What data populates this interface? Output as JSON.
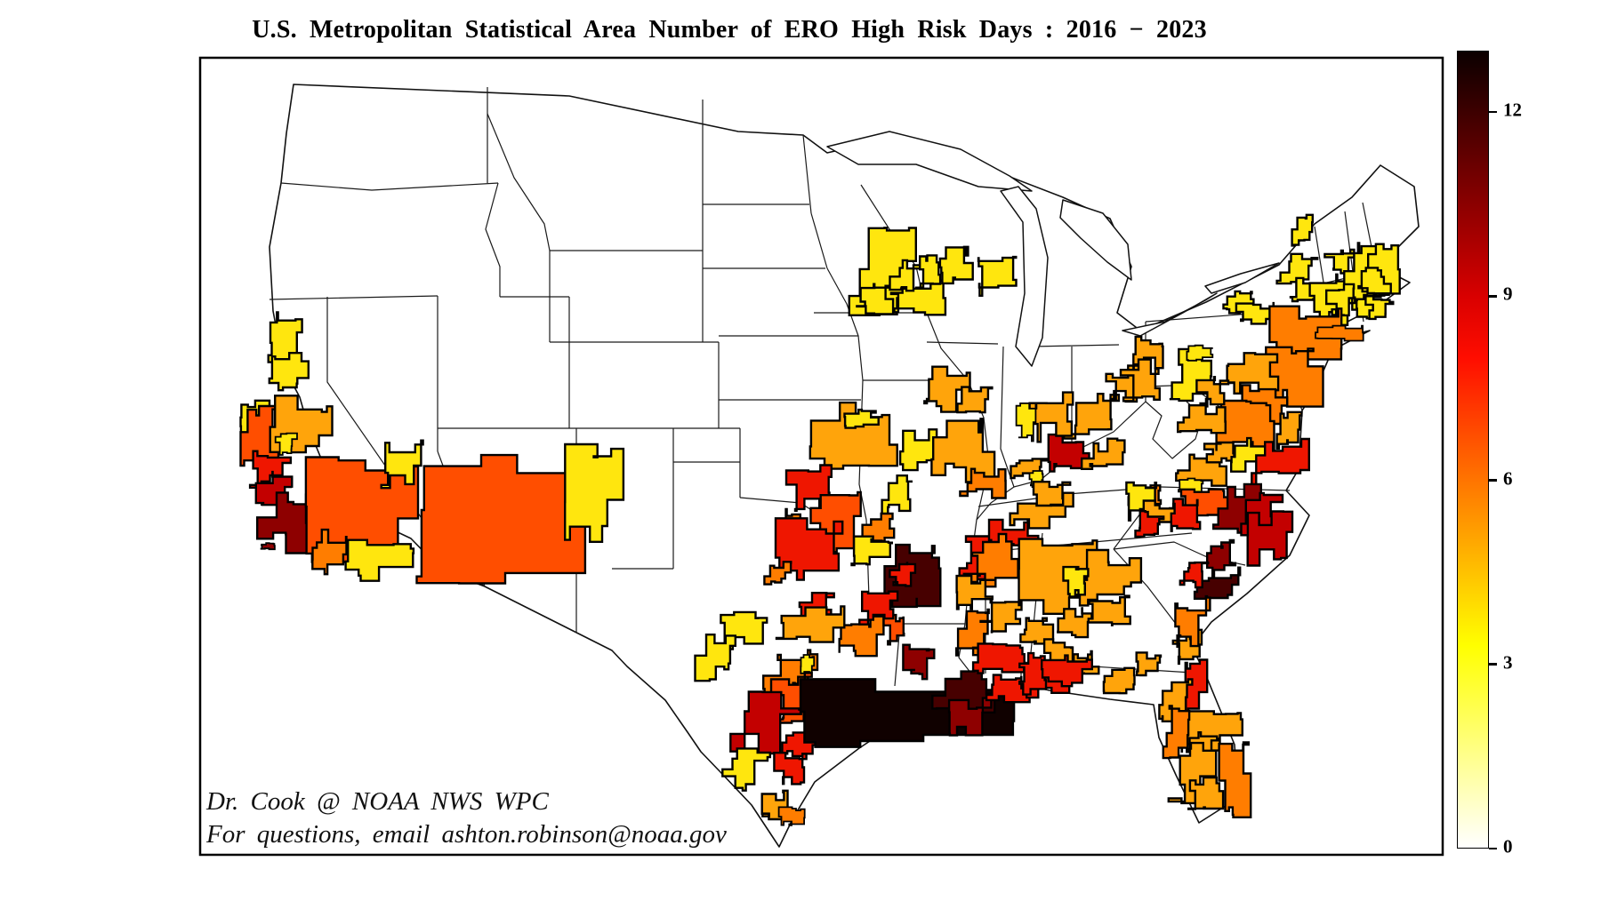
{
  "title": "U.S. Metropolitan Statistical Area Number of ERO High Risk Days : 2016 − 2023",
  "attribution": {
    "line1": "Dr. Cook @ NOAA NWS WPC",
    "line2": "For questions, email ashton.robinson@noaa.gov"
  },
  "colorbar": {
    "min": 0,
    "max": 13,
    "ticks": [
      12,
      9,
      6,
      3,
      0
    ],
    "orientation": "vertical",
    "position": "right"
  },
  "chart_data": {
    "type": "choropleth",
    "title": "U.S. Metropolitan Statistical Area Number of ERO High Risk Days : 2016 − 2023",
    "geography": "conterminous United States, Metropolitan Statistical Areas over state borders",
    "colormap": "hot_r (white → yellow → orange → red → dark red → black)",
    "value_range": [
      0,
      13
    ],
    "colorbar_ticks": [
      0,
      3,
      6,
      9,
      12
    ],
    "legend_position": "right",
    "uncolored_value": "0 (white MSAs / non-MSA land)",
    "palette": {
      "Y": {
        "hex": "#FFE60E",
        "approx_value": 3
      },
      "O": {
        "hex": "#FFA40B",
        "approx_value": 5
      },
      "DO": {
        "hex": "#FF7D00",
        "approx_value": 6
      },
      "RO": {
        "hex": "#FF4E00",
        "approx_value": 7
      },
      "R": {
        "hex": "#EF1600",
        "approx_value": 8.5
      },
      "DR": {
        "hex": "#C30000",
        "approx_value": 9.5
      },
      "M": {
        "hex": "#8E0000",
        "approx_value": 10.5
      },
      "DM": {
        "hex": "#470000",
        "approx_value": 12
      },
      "K": {
        "hex": "#100100",
        "approx_value": 13
      }
    },
    "regions_format": [
      "id",
      "color_key",
      "x",
      "y",
      "w",
      "h"
    ],
    "regions": [
      [
        "redding",
        "Y",
        296,
        362,
        40,
        46
      ],
      [
        "chico",
        "Y",
        306,
        404,
        34,
        30
      ],
      [
        "clearlake",
        "Y",
        276,
        452,
        22,
        32
      ],
      [
        "sf-bay-area",
        "RO",
        272,
        468,
        44,
        60
      ],
      [
        "sacramento",
        "O",
        312,
        458,
        56,
        50
      ],
      [
        "yuba-city",
        "Y",
        314,
        492,
        16,
        18
      ],
      [
        "central-coast",
        "R",
        282,
        512,
        38,
        30
      ],
      [
        "san-luis-obispo",
        "DR",
        292,
        540,
        36,
        36
      ],
      [
        "los-angeles-ventura",
        "M",
        300,
        564,
        54,
        48
      ],
      [
        "channel-islands",
        "M",
        294,
        612,
        14,
        6
      ],
      [
        "riverside-san-bernardino",
        "RO",
        352,
        518,
        106,
        110
      ],
      [
        "las-vegas",
        "Y",
        426,
        506,
        46,
        40
      ],
      [
        "phoenix-tucson",
        "RO",
        478,
        522,
        168,
        122
      ],
      [
        "eastern-arizona",
        "Y",
        646,
        512,
        48,
        86
      ],
      [
        "san-diego",
        "DO",
        352,
        604,
        40,
        34
      ],
      [
        "yuma-el-centro",
        "Y",
        394,
        612,
        62,
        34
      ],
      [
        "minneapolis",
        "Y",
        964,
        268,
        64,
        76
      ],
      [
        "rochester-mn",
        "Y",
        966,
        324,
        34,
        24
      ],
      [
        "la-crosse",
        "Y",
        1006,
        322,
        50,
        30
      ],
      [
        "eau-claire",
        "Y",
        1006,
        298,
        28,
        26
      ],
      [
        "wausau",
        "Y",
        1034,
        292,
        20,
        28
      ],
      [
        "green-bay",
        "Y",
        1062,
        284,
        26,
        30
      ],
      [
        "appleton-oshkosh",
        "Y",
        1095,
        292,
        38,
        34
      ],
      [
        "kansas-city",
        "O",
        914,
        464,
        88,
        64
      ],
      [
        "st-joseph",
        "Y",
        954,
        464,
        30,
        18
      ],
      [
        "columbia-mo",
        "Y",
        1012,
        492,
        38,
        32
      ],
      [
        "st-louis",
        "O",
        1054,
        482,
        58,
        50
      ],
      [
        "carbondale",
        "DO",
        1086,
        530,
        40,
        24
      ],
      [
        "poplar-bluff",
        "Y",
        998,
        540,
        24,
        32
      ],
      [
        "wichita",
        "R",
        890,
        528,
        38,
        40
      ],
      [
        "enid",
        "DO",
        880,
        578,
        22,
        18
      ],
      [
        "tulsa",
        "RO",
        912,
        564,
        46,
        50
      ],
      [
        "oklahoma-city",
        "R",
        882,
        590,
        56,
        56
      ],
      [
        "fort-smith",
        "DO",
        976,
        582,
        30,
        24
      ],
      [
        "fayetteville-ar",
        "Y",
        962,
        604,
        38,
        28
      ],
      [
        "little-rock",
        "R",
        906,
        672,
        26,
        26
      ],
      [
        "hot-springs",
        "DO",
        943,
        700,
        44,
        30
      ],
      [
        "jonesboro",
        "RO",
        996,
        696,
        20,
        24
      ],
      [
        "memphis",
        "R",
        1084,
        608,
        34,
        38
      ],
      [
        "north-mississippi",
        "DM",
        1006,
        616,
        54,
        56
      ],
      [
        "greenville-ms",
        "R",
        1004,
        638,
        20,
        20
      ],
      [
        "monroe-la",
        "DO",
        1082,
        686,
        28,
        48
      ],
      [
        "shreveport-texarkana",
        "R",
        970,
        672,
        36,
        25
      ],
      [
        "abilene",
        "Y",
        818,
        692,
        40,
        32
      ],
      [
        "san-angelo",
        "Y",
        790,
        718,
        34,
        40
      ],
      [
        "dallas-fort-worth",
        "O",
        882,
        688,
        58,
        38
      ],
      [
        "waco-temple",
        "DO",
        866,
        736,
        52,
        44
      ],
      [
        "waco-notch",
        "Y",
        900,
        738,
        14,
        20
      ],
      [
        "austin",
        "RO",
        872,
        766,
        35,
        38
      ],
      [
        "san-antonio",
        "DR",
        832,
        786,
        56,
        50
      ],
      [
        "victoria",
        "R",
        884,
        826,
        33,
        20
      ],
      [
        "corpus-christi",
        "R",
        876,
        848,
        31,
        28
      ],
      [
        "del-rio-eagle-pass",
        "Y",
        818,
        846,
        39,
        36
      ],
      [
        "laredo",
        "O",
        858,
        896,
        29,
        26
      ],
      [
        "brownsville",
        "DO",
        880,
        912,
        20,
        17
      ],
      [
        "wichita-falls",
        "DO",
        864,
        636,
        24,
        20
      ],
      [
        "gulf-coast-houston-to-mobile",
        "K",
        905,
        768,
        243,
        68
      ],
      [
        "baton-rouge",
        "DM",
        1054,
        758,
        56,
        36
      ],
      [
        "new-orleans",
        "M",
        1066,
        792,
        46,
        28
      ],
      [
        "natchez",
        "M",
        1020,
        733,
        28,
        28
      ],
      [
        "gulfport-biloxi",
        "R",
        1112,
        760,
        40,
        26
      ],
      [
        "hattiesburg",
        "R",
        1100,
        728,
        44,
        28
      ],
      [
        "mobile-strip",
        "R",
        1152,
        748,
        46,
        30
      ],
      [
        "huntsville",
        "R",
        1118,
        590,
        44,
        26
      ],
      [
        "birmingham",
        "DO",
        1088,
        612,
        46,
        40
      ],
      [
        "tuscaloosa",
        "O",
        1078,
        650,
        34,
        30
      ],
      [
        "montgomery",
        "O",
        1108,
        680,
        34,
        26
      ],
      [
        "columbus-ga",
        "O",
        1152,
        694,
        26,
        24
      ],
      [
        "atlanta",
        "O",
        1152,
        618,
        76,
        66
      ],
      [
        "athens-ga",
        "O",
        1216,
        642,
        22,
        18
      ],
      [
        "macon",
        "O",
        1196,
        688,
        26,
        24
      ],
      [
        "dothan",
        "O",
        1178,
        724,
        26,
        20
      ],
      [
        "albany-ga",
        "O",
        1204,
        736,
        28,
        20
      ],
      [
        "savannah",
        "O",
        1320,
        714,
        28,
        26
      ],
      [
        "augusta",
        "O",
        1232,
        672,
        36,
        30
      ],
      [
        "chattanooga",
        "DO",
        1274,
        550,
        28,
        20
      ],
      [
        "louisville",
        "DR",
        1182,
        498,
        42,
        32
      ],
      [
        "lexington",
        "O",
        1222,
        500,
        38,
        30
      ],
      [
        "cincinnati-dayton",
        "O",
        1208,
        444,
        44,
        48
      ],
      [
        "columbus-oh",
        "O",
        1248,
        418,
        30,
        28
      ],
      [
        "cleveland-akron",
        "O",
        1272,
        384,
        34,
        24
      ],
      [
        "indianapolis",
        "O",
        1158,
        444,
        50,
        42
      ],
      [
        "terre-haute",
        "Y",
        1146,
        458,
        16,
        36
      ],
      [
        "evansville",
        "O",
        1140,
        518,
        32,
        20
      ],
      [
        "owensboro",
        "Y",
        1158,
        532,
        14,
        14
      ],
      [
        "bowling-green",
        "O",
        1168,
        548,
        30,
        22
      ],
      [
        "nashville",
        "O",
        1142,
        562,
        60,
        26
      ],
      [
        "somerset-ky",
        "Y",
        1270,
        547,
        30,
        32
      ],
      [
        "knoxville",
        "O",
        1330,
        508,
        50,
        32
      ],
      [
        "sevierville",
        "Y",
        1326,
        540,
        26,
        12
      ],
      [
        "tri-cities",
        "O",
        1358,
        494,
        32,
        22
      ],
      [
        "peoria-bloomington",
        "O",
        1038,
        422,
        46,
        36
      ],
      [
        "champaign",
        "O",
        1082,
        440,
        30,
        24
      ],
      [
        "pittsburgh",
        "O",
        1268,
        414,
        40,
        34
      ],
      [
        "watertown",
        "Y",
        1456,
        246,
        22,
        26
      ],
      [
        "burlington",
        "Y",
        1492,
        280,
        30,
        30
      ],
      [
        "syracuse",
        "Y",
        1442,
        292,
        33,
        28
      ],
      [
        "utica",
        "Y",
        1456,
        318,
        28,
        22
      ],
      [
        "albany",
        "Y",
        1478,
        318,
        45,
        38
      ],
      [
        "new-hampshire",
        "Y",
        1516,
        284,
        30,
        58
      ],
      [
        "portland-me",
        "Y",
        1538,
        282,
        28,
        44
      ],
      [
        "springfield-ma",
        "Y",
        1496,
        326,
        26,
        24
      ],
      [
        "hartford",
        "Y",
        1522,
        330,
        28,
        24
      ],
      [
        "boston-worcester",
        "Y",
        1532,
        306,
        26,
        22
      ],
      [
        "providence",
        "Y",
        1540,
        336,
        22,
        18
      ],
      [
        "binghamton",
        "Y",
        1378,
        332,
        28,
        18
      ],
      [
        "scranton",
        "Y",
        1392,
        342,
        44,
        20
      ],
      [
        "state-college",
        "Y",
        1320,
        402,
        37,
        45
      ],
      [
        "williamsport",
        "Y",
        1336,
        390,
        26,
        14
      ],
      [
        "new-york-metro",
        "DO",
        1435,
        354,
        62,
        60
      ],
      [
        "long-island",
        "DO",
        1480,
        368,
        52,
        14
      ],
      [
        "philadelphia",
        "DO",
        1424,
        394,
        56,
        52
      ],
      [
        "harrisburg-york",
        "O",
        1388,
        404,
        42,
        32
      ],
      [
        "baltimore",
        "DO",
        1392,
        438,
        46,
        34
      ],
      [
        "washington-dc",
        "DO",
        1376,
        462,
        50,
        44
      ],
      [
        "harrisonburg",
        "O",
        1352,
        428,
        24,
        26
      ],
      [
        "salisbury-delmarva",
        "O",
        1438,
        468,
        20,
        32
      ],
      [
        "richmond",
        "Y",
        1392,
        498,
        32,
        28
      ],
      [
        "hampton-roads",
        "R",
        1414,
        504,
        48,
        36
      ],
      [
        "roanoke-lynchburg",
        "O",
        1330,
        462,
        46,
        30
      ],
      [
        "greensboro-winston",
        "RO",
        1332,
        552,
        48,
        22
      ],
      [
        "raleigh-durham",
        "M",
        1374,
        554,
        42,
        36
      ],
      [
        "rocky-mount",
        "DR",
        1402,
        560,
        36,
        38
      ],
      [
        "coastal-nc",
        "DR",
        1412,
        586,
        38,
        42
      ],
      [
        "charlotte",
        "R",
        1312,
        566,
        38,
        28
      ],
      [
        "asheville",
        "O",
        1288,
        566,
        28,
        24
      ],
      [
        "greenville-sc",
        "R",
        1276,
        580,
        28,
        22
      ],
      [
        "wilmington-nc",
        "M",
        1360,
        614,
        30,
        28
      ],
      [
        "myrtle-beach",
        "DM",
        1350,
        646,
        40,
        28
      ],
      [
        "florence-sc",
        "R",
        1332,
        636,
        22,
        20
      ],
      [
        "columbia-sc",
        "O",
        1222,
        626,
        52,
        46
      ],
      [
        "sumter",
        "Y",
        1200,
        644,
        24,
        22
      ],
      [
        "charleston-sc",
        "DO",
        1316,
        680,
        36,
        40
      ],
      [
        "pensacola",
        "R",
        1148,
        740,
        30,
        34
      ],
      [
        "fort-walton-beach",
        "R",
        1178,
        740,
        44,
        26
      ],
      [
        "panama-city",
        "O",
        1276,
        738,
        28,
        18
      ],
      [
        "tallahassee",
        "O",
        1244,
        756,
        36,
        20
      ],
      [
        "jacksonville",
        "R",
        1326,
        748,
        28,
        54
      ],
      [
        "gainesville-ocala",
        "O",
        1306,
        772,
        32,
        34
      ],
      [
        "orlando",
        "O",
        1338,
        798,
        48,
        40
      ],
      [
        "tampa",
        "DO",
        1312,
        802,
        30,
        46
      ],
      [
        "lakeland",
        "O",
        1338,
        826,
        28,
        24
      ],
      [
        "fl-east-coast",
        "DO",
        1376,
        840,
        24,
        74
      ],
      [
        "sarasota-fort-myers",
        "O",
        1322,
        846,
        36,
        54
      ],
      [
        "cape-coral-naples",
        "O",
        1340,
        878,
        30,
        28
      ]
    ]
  }
}
